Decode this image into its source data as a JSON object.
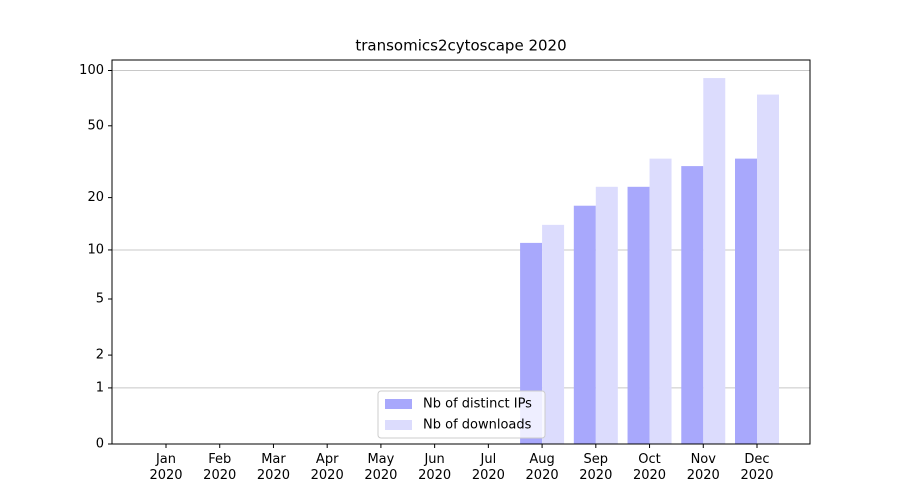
{
  "chart_data": {
    "type": "bar",
    "title": "transomics2cytoscape 2020",
    "categories": [
      "Jan\n2020",
      "Feb\n2020",
      "Mar\n2020",
      "Apr\n2020",
      "May\n2020",
      "Jun\n2020",
      "Jul\n2020",
      "Aug\n2020",
      "Sep\n2020",
      "Oct\n2020",
      "Nov\n2020",
      "Dec\n2020"
    ],
    "series": [
      {
        "name": "Nb of distinct IPs",
        "color": "#a8a8fc",
        "values": [
          0,
          0,
          0,
          0,
          0,
          0,
          0,
          11,
          18,
          23,
          30,
          33
        ]
      },
      {
        "name": "Nb of downloads",
        "color": "#dcdcfd",
        "values": [
          0,
          0,
          0,
          0,
          0,
          0,
          0,
          14,
          23,
          33,
          91,
          74
        ]
      }
    ],
    "yscale": "log1p",
    "ylim": [
      0,
      114
    ],
    "yticks": [
      0,
      1,
      2,
      5,
      10,
      20,
      50,
      100
    ],
    "major_grid": [
      1,
      10,
      100
    ],
    "legend": "lower center"
  }
}
